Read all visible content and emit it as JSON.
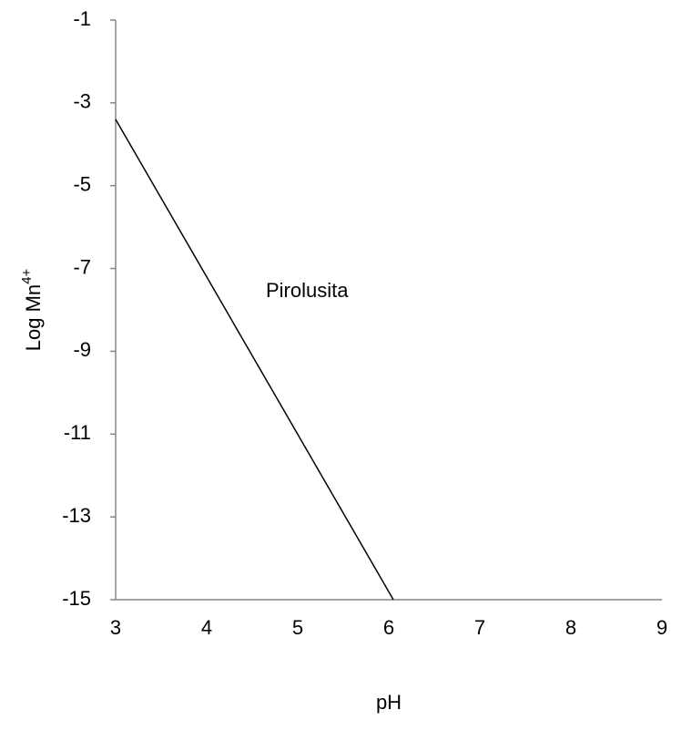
{
  "chart_data": {
    "type": "line",
    "x": [
      3,
      6.05
    ],
    "values": [
      -3.4,
      -15
    ],
    "color": "#000000",
    "xlabel": "pH",
    "ylabel": "Log Mn",
    "ylabel_superscript": "4+",
    "annotations": [
      "Pirolusita"
    ],
    "xlim": [
      3,
      9
    ],
    "xticks": [
      3,
      4,
      5,
      6,
      7,
      8,
      9
    ],
    "ylim": [
      -15,
      -1
    ],
    "yticks": [
      -15,
      -13,
      -11,
      -9,
      -7,
      -5,
      -3,
      -1
    ],
    "grid": false
  }
}
